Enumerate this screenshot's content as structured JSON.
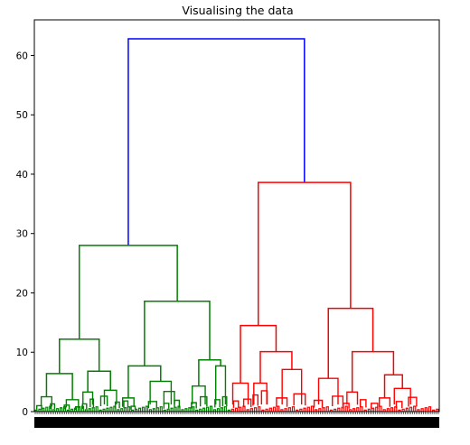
{
  "chart_data": {
    "type": "dendrogram",
    "title": "Visualising the data",
    "xlabel": "",
    "ylabel": "",
    "ylim": [
      0,
      66
    ],
    "yticks": [
      0,
      10,
      20,
      30,
      40,
      50,
      60
    ],
    "grid": false,
    "legend": "none",
    "colors": {
      "left_cluster": "#008000",
      "right_cluster": "#ff0000",
      "root": "#0000ff",
      "tick_labels": "#000000"
    },
    "merges": [
      {
        "color": "#0000ff",
        "height": 62.8,
        "left": {
          "pos": 0.232,
          "h": 28.0
        },
        "right": {
          "pos": 0.667,
          "h": 38.6
        }
      },
      {
        "color": "#008000",
        "height": 28.0,
        "left": {
          "pos": 0.111,
          "h": 12.2
        },
        "right": {
          "pos": 0.353,
          "h": 18.6
        }
      },
      {
        "color": "#008000",
        "height": 12.2,
        "left": {
          "pos": 0.062,
          "h": 6.4
        },
        "right": {
          "pos": 0.16,
          "h": 6.8
        }
      },
      {
        "color": "#008000",
        "height": 18.6,
        "left": {
          "pos": 0.272,
          "h": 7.7
        },
        "right": {
          "pos": 0.433,
          "h": 8.7
        }
      },
      {
        "color": "#008000",
        "height": 6.4,
        "left": {
          "pos": 0.03,
          "h": 2.5
        },
        "right": {
          "pos": 0.094,
          "h": 2.0
        }
      },
      {
        "color": "#008000",
        "height": 6.8,
        "left": {
          "pos": 0.132,
          "h": 3.3
        },
        "right": {
          "pos": 0.188,
          "h": 3.6
        }
      },
      {
        "color": "#008000",
        "height": 7.7,
        "left": {
          "pos": 0.232,
          "h": 2.3
        },
        "right": {
          "pos": 0.312,
          "h": 5.1
        }
      },
      {
        "color": "#008000",
        "height": 8.7,
        "left": {
          "pos": 0.406,
          "h": 4.3
        },
        "right": {
          "pos": 0.46,
          "h": 7.7
        }
      },
      {
        "color": "#ff0000",
        "height": 38.6,
        "left": {
          "pos": 0.553,
          "h": 14.5
        },
        "right": {
          "pos": 0.781,
          "h": 17.4
        }
      },
      {
        "color": "#ff0000",
        "height": 14.5,
        "left": {
          "pos": 0.509,
          "h": 4.8
        },
        "right": {
          "pos": 0.597,
          "h": 10.1
        }
      },
      {
        "color": "#ff0000",
        "height": 10.1,
        "left": {
          "pos": 0.558,
          "h": 4.8
        },
        "right": {
          "pos": 0.636,
          "h": 7.1
        }
      },
      {
        "color": "#ff0000",
        "height": 17.4,
        "left": {
          "pos": 0.726,
          "h": 5.6
        },
        "right": {
          "pos": 0.836,
          "h": 10.1
        }
      },
      {
        "color": "#ff0000",
        "height": 10.1,
        "left": {
          "pos": 0.785,
          "h": 3.3
        },
        "right": {
          "pos": 0.887,
          "h": 6.2
        }
      },
      {
        "color": "#ff0000",
        "height": 6.2,
        "left": {
          "pos": 0.865,
          "h": 2.3
        },
        "right": {
          "pos": 0.909,
          "h": 3.9
        }
      }
    ],
    "small_merges": [
      {
        "color": "#008000",
        "pos": 0.03,
        "w": 0.026,
        "h": 2.5
      },
      {
        "color": "#008000",
        "pos": 0.012,
        "w": 0.012,
        "h": 1.0
      },
      {
        "color": "#008000",
        "pos": 0.045,
        "w": 0.01,
        "h": 1.3
      },
      {
        "color": "#008000",
        "pos": 0.094,
        "w": 0.03,
        "h": 2.0
      },
      {
        "color": "#008000",
        "pos": 0.08,
        "w": 0.012,
        "h": 1.1
      },
      {
        "color": "#008000",
        "pos": 0.107,
        "w": 0.01,
        "h": 0.8
      },
      {
        "color": "#008000",
        "pos": 0.132,
        "w": 0.024,
        "h": 3.3
      },
      {
        "color": "#008000",
        "pos": 0.124,
        "w": 0.01,
        "h": 1.3
      },
      {
        "color": "#008000",
        "pos": 0.142,
        "w": 0.008,
        "h": 2.1
      },
      {
        "color": "#008000",
        "pos": 0.188,
        "w": 0.03,
        "h": 3.6
      },
      {
        "color": "#008000",
        "pos": 0.172,
        "w": 0.016,
        "h": 2.6
      },
      {
        "color": "#008000",
        "pos": 0.205,
        "w": 0.01,
        "h": 1.6
      },
      {
        "color": "#008000",
        "pos": 0.232,
        "w": 0.028,
        "h": 2.3
      },
      {
        "color": "#008000",
        "pos": 0.226,
        "w": 0.01,
        "h": 1.8
      },
      {
        "color": "#008000",
        "pos": 0.244,
        "w": 0.01,
        "h": 0.9
      },
      {
        "color": "#008000",
        "pos": 0.312,
        "w": 0.052,
        "h": 5.1
      },
      {
        "color": "#008000",
        "pos": 0.292,
        "w": 0.02,
        "h": 1.7
      },
      {
        "color": "#008000",
        "pos": 0.333,
        "w": 0.026,
        "h": 3.4
      },
      {
        "color": "#008000",
        "pos": 0.326,
        "w": 0.012,
        "h": 1.4
      },
      {
        "color": "#008000",
        "pos": 0.352,
        "w": 0.012,
        "h": 1.9
      },
      {
        "color": "#008000",
        "pos": 0.406,
        "w": 0.032,
        "h": 4.3
      },
      {
        "color": "#008000",
        "pos": 0.394,
        "w": 0.012,
        "h": 1.5
      },
      {
        "color": "#008000",
        "pos": 0.418,
        "w": 0.016,
        "h": 2.5
      },
      {
        "color": "#008000",
        "pos": 0.46,
        "w": 0.024,
        "h": 7.7
      },
      {
        "color": "#008000",
        "pos": 0.452,
        "w": 0.012,
        "h": 2.0
      },
      {
        "color": "#008000",
        "pos": 0.47,
        "w": 0.01,
        "h": 2.5
      },
      {
        "color": "#ff0000",
        "pos": 0.509,
        "w": 0.038,
        "h": 4.8
      },
      {
        "color": "#ff0000",
        "pos": 0.498,
        "w": 0.012,
        "h": 1.8
      },
      {
        "color": "#ff0000",
        "pos": 0.526,
        "w": 0.018,
        "h": 2.1
      },
      {
        "color": "#ff0000",
        "pos": 0.558,
        "w": 0.032,
        "h": 4.8
      },
      {
        "color": "#ff0000",
        "pos": 0.546,
        "w": 0.012,
        "h": 2.8
      },
      {
        "color": "#ff0000",
        "pos": 0.568,
        "w": 0.014,
        "h": 3.5
      },
      {
        "color": "#ff0000",
        "pos": 0.636,
        "w": 0.048,
        "h": 7.1
      },
      {
        "color": "#ff0000",
        "pos": 0.611,
        "w": 0.026,
        "h": 2.3
      },
      {
        "color": "#ff0000",
        "pos": 0.655,
        "w": 0.028,
        "h": 3.0
      },
      {
        "color": "#ff0000",
        "pos": 0.726,
        "w": 0.048,
        "h": 5.6
      },
      {
        "color": "#ff0000",
        "pos": 0.701,
        "w": 0.02,
        "h": 1.9
      },
      {
        "color": "#ff0000",
        "pos": 0.749,
        "w": 0.026,
        "h": 2.6
      },
      {
        "color": "#ff0000",
        "pos": 0.785,
        "w": 0.026,
        "h": 3.3
      },
      {
        "color": "#ff0000",
        "pos": 0.77,
        "w": 0.014,
        "h": 1.4
      },
      {
        "color": "#ff0000",
        "pos": 0.812,
        "w": 0.014,
        "h": 2.0
      },
      {
        "color": "#ff0000",
        "pos": 0.865,
        "w": 0.026,
        "h": 2.3
      },
      {
        "color": "#ff0000",
        "pos": 0.84,
        "w": 0.016,
        "h": 1.4
      },
      {
        "color": "#ff0000",
        "pos": 0.909,
        "w": 0.04,
        "h": 3.9
      },
      {
        "color": "#ff0000",
        "pos": 0.901,
        "w": 0.014,
        "h": 1.7
      },
      {
        "color": "#ff0000",
        "pos": 0.934,
        "w": 0.02,
        "h": 2.4
      }
    ],
    "leaf_groups": [
      {
        "color": "#008000",
        "from": 0.0,
        "to": 0.485,
        "count": 110
      },
      {
        "color": "#ff0000",
        "from": 0.485,
        "to": 1.0,
        "count": 110
      }
    ]
  }
}
